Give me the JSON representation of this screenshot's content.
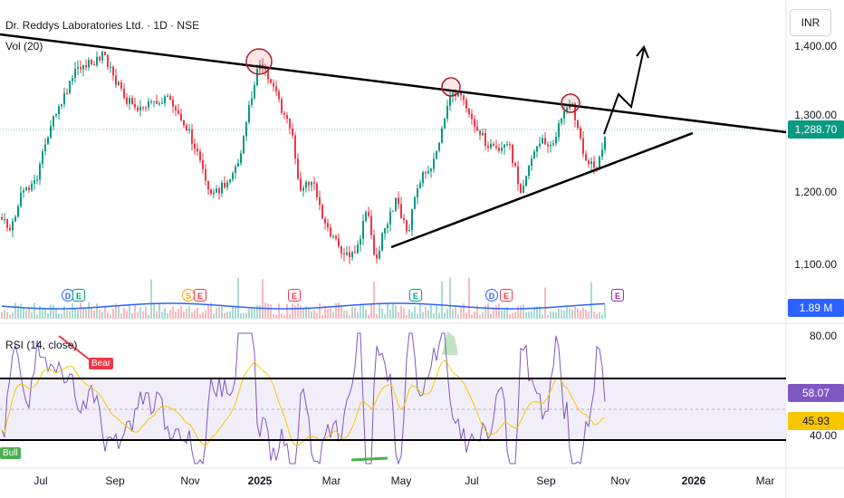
{
  "header": {
    "title": "Dr. Reddys Laboratories Ltd. · 1D · NSE",
    "volume_indicator": "Vol (20)",
    "rsi_indicator": "RSI (14, close)",
    "currency_button": "INR"
  },
  "price_axis": {
    "ticks": [
      "1,400.00",
      "1,300.00",
      "1,200.00",
      "1,100.00"
    ]
  },
  "tags": {
    "last_price": "1,288.70",
    "volume_value": "1.89 M",
    "rsi_value": "58.07",
    "rsi_ma_value": "45.93",
    "last_price_color": "#089981",
    "volume_color": "#2962ff",
    "rsi_color": "#7e57c2",
    "rsi_ma_color": "#f7c600"
  },
  "rsi_axis": {
    "ticks": [
      "80.00",
      "40.00"
    ]
  },
  "time_axis": [
    "Jul",
    "Sep",
    "Nov",
    "2025",
    "Mar",
    "May",
    "Jul",
    "Sep",
    "Nov",
    "2026",
    "Mar"
  ],
  "events": [
    {
      "label": "D",
      "type": "dividend"
    },
    {
      "label": "E",
      "type": "earnings"
    },
    {
      "label": "S",
      "type": "split"
    },
    {
      "label": "E",
      "type": "earnings"
    },
    {
      "label": "E",
      "type": "earnings"
    },
    {
      "label": "E",
      "type": "earnings"
    },
    {
      "label": "D",
      "type": "dividend"
    },
    {
      "label": "E",
      "type": "earnings"
    },
    {
      "label": "E",
      "type": "earnings"
    }
  ],
  "signals": {
    "bear": "Bear",
    "bull": "Bull"
  },
  "colors": {
    "up": "#089981",
    "down": "#f23645",
    "rsi_band": "#ede7f6"
  }
}
